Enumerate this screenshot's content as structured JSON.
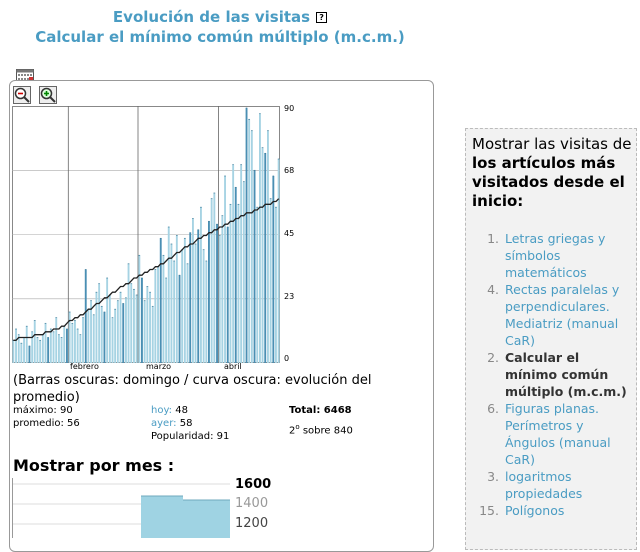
{
  "header": {
    "title1": "Evolución de las visitas",
    "help_icon": "?",
    "title2": "Calcular el mínimo común múltiplo (m.c.m.)"
  },
  "icons": {
    "calendar": "calendar-icon",
    "zoom_out": "zoom-out-icon",
    "zoom_in": "zoom-in-icon"
  },
  "chart": {
    "y_ticks": [
      "90",
      "68",
      "45",
      "23",
      "0"
    ],
    "months": [
      "febrero",
      "marzo",
      "abril"
    ],
    "caption": "(Barras oscuras: domingo / curva oscura: evolución del promedio)",
    "colors": {
      "bar_light": "#a6d3e3",
      "bar_dark": "#4a8fb3",
      "curve": "#222222"
    }
  },
  "chart_data": {
    "type": "bar",
    "ylim": [
      0,
      90
    ],
    "x_month_labels": [
      "febrero",
      "marzo",
      "abril"
    ],
    "series": [
      {
        "values": [
          8,
          12,
          10,
          7,
          9,
          13,
          6,
          11,
          15,
          9,
          8,
          10,
          14,
          9,
          12,
          11,
          16,
          10,
          9,
          13,
          12,
          18,
          14,
          15,
          12,
          10,
          16,
          33,
          19,
          22,
          17,
          25,
          28,
          20,
          18,
          30,
          24,
          16,
          19,
          22,
          25,
          21,
          23,
          35,
          28,
          26,
          24,
          38,
          30,
          22,
          27,
          25,
          20,
          33,
          34,
          44,
          38,
          30,
          48,
          42,
          36,
          45,
          31,
          40,
          44,
          35,
          46,
          51,
          42,
          47,
          55,
          40,
          36,
          50,
          58,
          60,
          49,
          45,
          52,
          66,
          48,
          56,
          70,
          62,
          56,
          70,
          64,
          90,
          86,
          82,
          68,
          55,
          88,
          76,
          74,
          82,
          58,
          66,
          55,
          72
        ]
      },
      {
        "values": [
          8,
          8,
          9,
          9,
          9,
          9,
          9,
          9,
          10,
          10,
          10,
          10,
          11,
          11,
          11,
          12,
          12,
          12,
          13,
          13,
          14,
          15,
          15,
          16,
          16,
          17,
          17,
          18,
          19,
          19,
          20,
          21,
          21,
          22,
          23,
          23,
          24,
          25,
          25,
          26,
          27,
          27,
          28,
          28,
          29,
          30,
          30,
          31,
          31,
          32,
          32,
          33,
          33,
          34,
          34,
          35,
          35,
          36,
          37,
          37,
          38,
          39,
          39,
          40,
          41,
          41,
          42,
          42,
          43,
          44,
          44,
          45,
          45,
          46,
          46,
          47,
          47,
          48,
          48,
          49,
          49,
          50,
          50,
          51,
          51,
          52,
          52,
          53,
          53,
          53,
          54,
          54,
          55,
          55,
          56,
          56,
          56,
          57,
          57,
          58
        ]
      }
    ]
  },
  "stats": {
    "max": "máximo: 90",
    "avg": "promedio: 56",
    "today_label": "hoy:",
    "today_value": "48",
    "yesterday_label": "ayer:",
    "yesterday_value": "58",
    "popularity": "Popularidad: 91",
    "total": "Total: 6468",
    "rank_num": "2",
    "rank_sup": "o",
    "rank_rest": " sobre 840"
  },
  "monthly": {
    "title": "Mostrar por mes :",
    "labels": [
      "1600",
      "1400",
      "1200"
    ],
    "colors": {
      "bar": "#9fd3e3"
    }
  },
  "sidebar": {
    "title_pre": "Mostrar las visitas de ",
    "title_bold": "los artículos más visitados desde el inicio:",
    "items": [
      {
        "num": "1.",
        "text": "Letras griegas y símbolos matemáticos",
        "current": false
      },
      {
        "num": "4.",
        "text": "Rectas paralelas y perpendiculares. Mediatriz (manual CaR)",
        "current": false
      },
      {
        "num": "2.",
        "text": "Calcular el mínimo común múltiplo (m.c.m.)",
        "current": true
      },
      {
        "num": "6.",
        "text": "Figuras planas. Perímetros y Ángulos (manual CaR)",
        "current": false
      },
      {
        "num": "3.",
        "text": "logaritmos propiedades",
        "current": false
      },
      {
        "num": "15.",
        "text": "Polígonos",
        "current": false
      }
    ]
  }
}
